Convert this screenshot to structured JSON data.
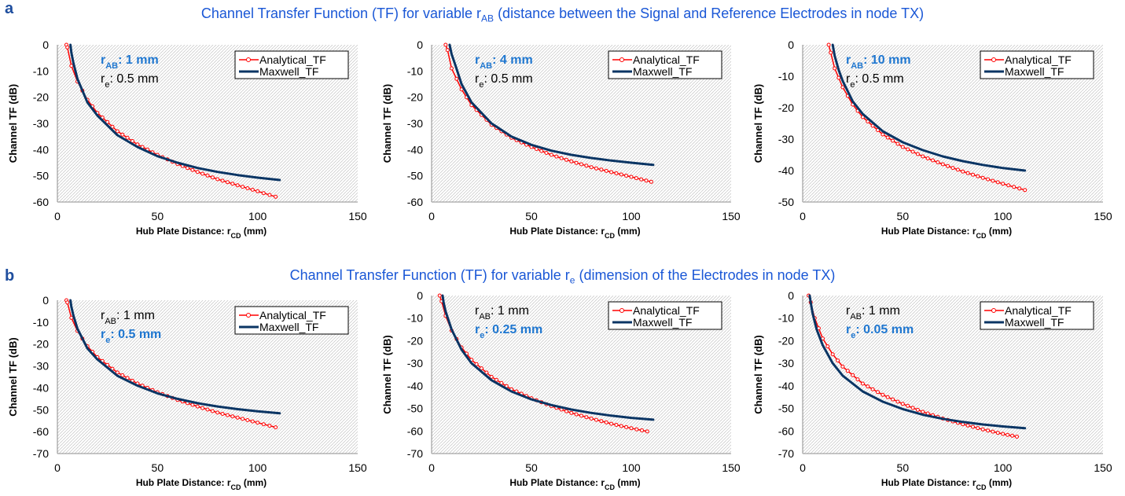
{
  "rows": [
    {
      "letter": "a",
      "title_pre": "Channel Transfer Function (TF) for variable r",
      "title_sub": "AB",
      "title_post": " (distance between the Signal and Reference Electrodes in node TX)"
    },
    {
      "letter": "b",
      "title_pre": "Channel Transfer Function (TF) for variable r",
      "title_sub": "e",
      "title_post": " (dimension of the Electrodes in node TX)"
    }
  ],
  "chart_data": [
    {
      "type": "line",
      "ylabel": "Channel TF (dB)",
      "xlabel": "Hub Plate Distance: r",
      "xlabel_sub": "CD",
      "xlabel_post": " (mm)",
      "xlim": [
        0,
        150
      ],
      "ylim": [
        -60,
        0
      ],
      "xticks": [
        0,
        50,
        100,
        150
      ],
      "yticks": [
        0,
        -10,
        -20,
        -30,
        -40,
        -50,
        -60
      ],
      "grid": false,
      "legend_position": "top-right",
      "annotation": [
        {
          "pre": "r",
          "sub": "AB",
          "post": ": 1 mm",
          "highlight": true
        },
        {
          "pre": "r",
          "sub": "e",
          "post": ": 0.5 mm",
          "highlight": false
        }
      ],
      "series": [
        {
          "name": "Analytical_TF",
          "color": "#ff0000",
          "marker": "circle",
          "x": [
            4.5,
            5,
            7,
            10,
            15,
            20,
            30,
            40,
            50,
            60,
            70,
            80,
            90,
            100,
            109
          ],
          "y": [
            0,
            -1,
            -8,
            -14,
            -21,
            -26,
            -33,
            -38,
            -42,
            -45.5,
            -48.5,
            -51.3,
            -53.6,
            -55.9,
            -58
          ]
        },
        {
          "name": "Maxwell_TF",
          "color": "#0a3564",
          "marker": "none",
          "x": [
            6.5,
            7,
            8,
            10,
            15,
            20,
            30,
            40,
            50,
            60,
            70,
            80,
            90,
            100,
            111
          ],
          "y": [
            0,
            -3,
            -7,
            -13,
            -22,
            -27,
            -34.5,
            -39,
            -42.5,
            -45,
            -47,
            -48.5,
            -49.7,
            -50.7,
            -51.6
          ]
        }
      ]
    },
    {
      "type": "line",
      "ylabel": "Channel TF (dB)",
      "xlabel": "Hub Plate Distance: r",
      "xlabel_sub": "CD",
      "xlabel_post": " (mm)",
      "xlim": [
        0,
        150
      ],
      "ylim": [
        -60,
        0
      ],
      "xticks": [
        0,
        50,
        100,
        150
      ],
      "yticks": [
        0,
        -10,
        -20,
        -30,
        -40,
        -50,
        -60
      ],
      "grid": false,
      "legend_position": "top-right",
      "annotation": [
        {
          "pre": "r",
          "sub": "AB",
          "post": ": 4 mm",
          "highlight": true
        },
        {
          "pre": "r",
          "sub": "e",
          "post": ": 0.5 mm",
          "highlight": false
        }
      ],
      "series": [
        {
          "name": "Analytical_TF",
          "color": "#ff0000",
          "marker": "circle",
          "x": [
            7,
            8,
            10,
            15,
            20,
            30,
            40,
            50,
            60,
            70,
            80,
            90,
            100,
            110
          ],
          "y": [
            0,
            -2,
            -9,
            -17,
            -23,
            -30.5,
            -35.5,
            -39,
            -42,
            -44.5,
            -46.7,
            -48.6,
            -50.4,
            -52.3
          ]
        },
        {
          "name": "Maxwell_TF",
          "color": "#0a3564",
          "marker": "none",
          "x": [
            9,
            10,
            12,
            15,
            20,
            30,
            40,
            50,
            60,
            70,
            80,
            90,
            100,
            111
          ],
          "y": [
            0,
            -3.5,
            -8,
            -15,
            -22,
            -30,
            -35,
            -38.2,
            -40.4,
            -42,
            -43.2,
            -44.2,
            -45,
            -45.8
          ]
        }
      ]
    },
    {
      "type": "line",
      "ylabel": "Channel TF (dB)",
      "xlabel": "Hub Plate Distance: r",
      "xlabel_sub": "CD",
      "xlabel_post": " (mm)",
      "xlim": [
        0,
        150
      ],
      "ylim": [
        -50,
        0
      ],
      "xticks": [
        0,
        50,
        100,
        150
      ],
      "yticks": [
        0,
        -10,
        -20,
        -30,
        -40,
        -50
      ],
      "grid": false,
      "legend_position": "top-right",
      "annotation": [
        {
          "pre": "r",
          "sub": "AB",
          "post": ": 10 mm",
          "highlight": true
        },
        {
          "pre": "r",
          "sub": "e",
          "post": ": 0.5 mm",
          "highlight": false
        }
      ],
      "series": [
        {
          "name": "Analytical_TF",
          "color": "#ff0000",
          "marker": "circle",
          "x": [
            13,
            14,
            16,
            20,
            25,
            30,
            40,
            50,
            60,
            70,
            80,
            90,
            100,
            111
          ],
          "y": [
            0,
            -2.5,
            -7.5,
            -13.5,
            -19,
            -23,
            -28.5,
            -32.5,
            -35.5,
            -38,
            -40.3,
            -42.3,
            -44.2,
            -46.2
          ]
        },
        {
          "name": "Maxwell_TF",
          "color": "#0a3564",
          "marker": "none",
          "x": [
            15,
            16,
            18,
            20,
            25,
            30,
            40,
            50,
            60,
            70,
            80,
            90,
            100,
            111
          ],
          "y": [
            0,
            -3.5,
            -8,
            -11.5,
            -18,
            -22,
            -27.5,
            -31,
            -33.5,
            -35.5,
            -37,
            -38.2,
            -39.2,
            -40
          ]
        }
      ]
    },
    {
      "type": "line",
      "ylabel": "Channel TF (dB)",
      "xlabel": "Hub Plate Distance: r",
      "xlabel_sub": "CD",
      "xlabel_post": " (mm)",
      "xlim": [
        0,
        150
      ],
      "ylim": [
        -70,
        0
      ],
      "xticks": [
        0,
        50,
        100,
        150
      ],
      "yticks": [
        0,
        -10,
        -20,
        -30,
        -40,
        -50,
        -60,
        -70
      ],
      "grid": false,
      "legend_position": "top-right",
      "annotation": [
        {
          "pre": "r",
          "sub": "AB",
          "post": ": 1 mm",
          "highlight": false
        },
        {
          "pre": "r",
          "sub": "e",
          "post": ": 0.5 mm",
          "highlight": true
        }
      ],
      "series": [
        {
          "name": "Analytical_TF",
          "color": "#ff0000",
          "marker": "circle",
          "x": [
            4.5,
            5,
            7,
            10,
            15,
            20,
            30,
            40,
            50,
            60,
            70,
            80,
            90,
            100,
            109
          ],
          "y": [
            0,
            -1,
            -8,
            -14,
            -21,
            -26,
            -33,
            -38,
            -42,
            -45.5,
            -48.5,
            -51.3,
            -53.6,
            -55.9,
            -58
          ]
        },
        {
          "name": "Maxwell_TF",
          "color": "#0a3564",
          "marker": "none",
          "x": [
            6.5,
            7,
            8,
            10,
            15,
            20,
            30,
            40,
            50,
            60,
            70,
            80,
            90,
            100,
            111
          ],
          "y": [
            0,
            -3,
            -7,
            -13,
            -22,
            -27,
            -34.5,
            -39,
            -42.5,
            -45,
            -47,
            -48.5,
            -49.7,
            -50.7,
            -51.6
          ]
        }
      ]
    },
    {
      "type": "line",
      "ylabel": "Channel TF (dB)",
      "xlabel": "Hub Plate Distance: r",
      "xlabel_sub": "CD",
      "xlabel_post": " (mm)",
      "xlim": [
        0,
        150
      ],
      "ylim": [
        -70,
        0
      ],
      "xticks": [
        0,
        50,
        100,
        150
      ],
      "yticks": [
        0,
        -10,
        -20,
        -30,
        -40,
        -50,
        -60,
        -70
      ],
      "grid": false,
      "legend_position": "top-right",
      "annotation": [
        {
          "pre": "r",
          "sub": "AB",
          "post": ": 1 mm",
          "highlight": false
        },
        {
          "pre": "r",
          "sub": "e",
          "post": ": 0.25 mm",
          "highlight": true
        }
      ],
      "series": [
        {
          "name": "Analytical_TF",
          "color": "#ff0000",
          "marker": "circle",
          "x": [
            4,
            5,
            7,
            10,
            15,
            20,
            30,
            40,
            50,
            60,
            70,
            80,
            90,
            100,
            108
          ],
          "y": [
            0,
            -2.5,
            -9,
            -15.5,
            -23,
            -28.5,
            -36,
            -41.5,
            -45.5,
            -49,
            -52,
            -54.5,
            -56.8,
            -58.8,
            -60.2
          ]
        },
        {
          "name": "Maxwell_TF",
          "color": "#0a3564",
          "marker": "none",
          "x": [
            5.5,
            6,
            7,
            10,
            15,
            20,
            30,
            40,
            50,
            60,
            70,
            80,
            90,
            100,
            111
          ],
          "y": [
            0,
            -3,
            -7,
            -15,
            -24,
            -30,
            -37.5,
            -42.5,
            -46,
            -48.5,
            -50.5,
            -52,
            -53.2,
            -54.2,
            -55
          ]
        }
      ]
    },
    {
      "type": "line",
      "ylabel": "Channel TF (dB)",
      "xlabel": "Hub Plate Distance: r",
      "xlabel_sub": "CD",
      "xlabel_post": " (mm)",
      "xlim": [
        0,
        150
      ],
      "ylim": [
        -70,
        0
      ],
      "xticks": [
        0,
        50,
        100,
        150
      ],
      "yticks": [
        0,
        -10,
        -20,
        -30,
        -40,
        -50,
        -60,
        -70
      ],
      "grid": false,
      "legend_position": "top-right",
      "annotation": [
        {
          "pre": "r",
          "sub": "AB",
          "post": ": 1 mm",
          "highlight": false
        },
        {
          "pre": "r",
          "sub": "e",
          "post": ": 0.05 mm",
          "highlight": true
        }
      ],
      "series": [
        {
          "name": "Analytical_TF",
          "color": "#ff0000",
          "marker": "circle",
          "x": [
            3,
            4,
            6,
            10,
            15,
            20,
            30,
            40,
            50,
            60,
            70,
            80,
            90,
            100,
            107
          ],
          "y": [
            0,
            -3,
            -10,
            -19,
            -26,
            -31.5,
            -39,
            -44,
            -48,
            -51.5,
            -54.5,
            -57,
            -59.3,
            -61.3,
            -62.5
          ]
        },
        {
          "name": "Maxwell_TF",
          "color": "#0a3564",
          "marker": "none",
          "x": [
            3.5,
            4,
            5,
            7,
            10,
            15,
            20,
            30,
            40,
            50,
            60,
            70,
            80,
            90,
            100,
            111
          ],
          "y": [
            0,
            -3,
            -8,
            -15,
            -22,
            -30,
            -35.5,
            -42.5,
            -47,
            -50.3,
            -52.8,
            -54.6,
            -56,
            -57.1,
            -58,
            -58.8
          ]
        }
      ]
    }
  ]
}
